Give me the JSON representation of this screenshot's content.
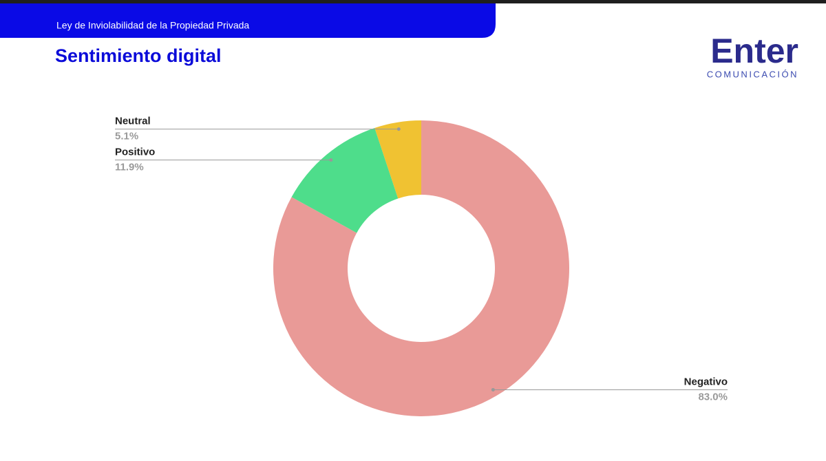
{
  "header": {
    "subtitle": "Ley de Inviolabilidad de la Propiedad Privada"
  },
  "logo": {
    "name": "Enter",
    "tagline": "COMUNICACIÓN"
  },
  "chart_data": {
    "type": "pie",
    "title": "Sentimiento digital",
    "categories": [
      "Negativo",
      "Positivo",
      "Neutral"
    ],
    "values": [
      83.0,
      11.9,
      5.1
    ],
    "value_labels": [
      "83.0%",
      "11.9%",
      "5.1%"
    ],
    "colors": [
      "#e99a97",
      "#4edd8b",
      "#f0c232"
    ],
    "donut": true
  }
}
